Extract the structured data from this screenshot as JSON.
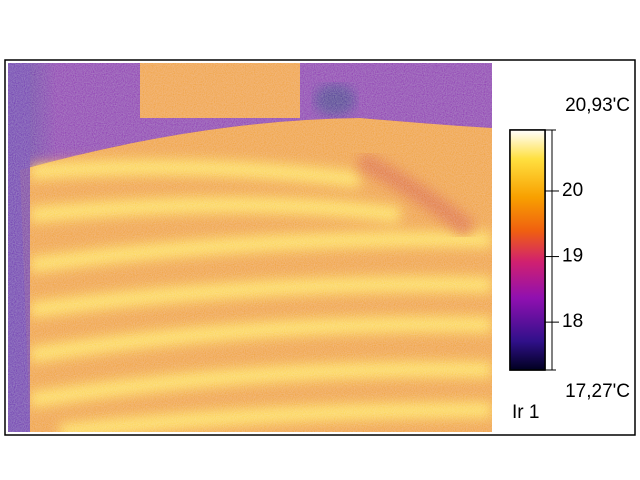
{
  "thermal_image": {
    "scale": {
      "max": {
        "value": 20.93,
        "label": "20,93'C"
      },
      "min": {
        "value": 17.27,
        "label": "17,27'C"
      },
      "ticks": [
        18,
        19,
        20
      ]
    },
    "image_label": "Ir 1"
  }
}
